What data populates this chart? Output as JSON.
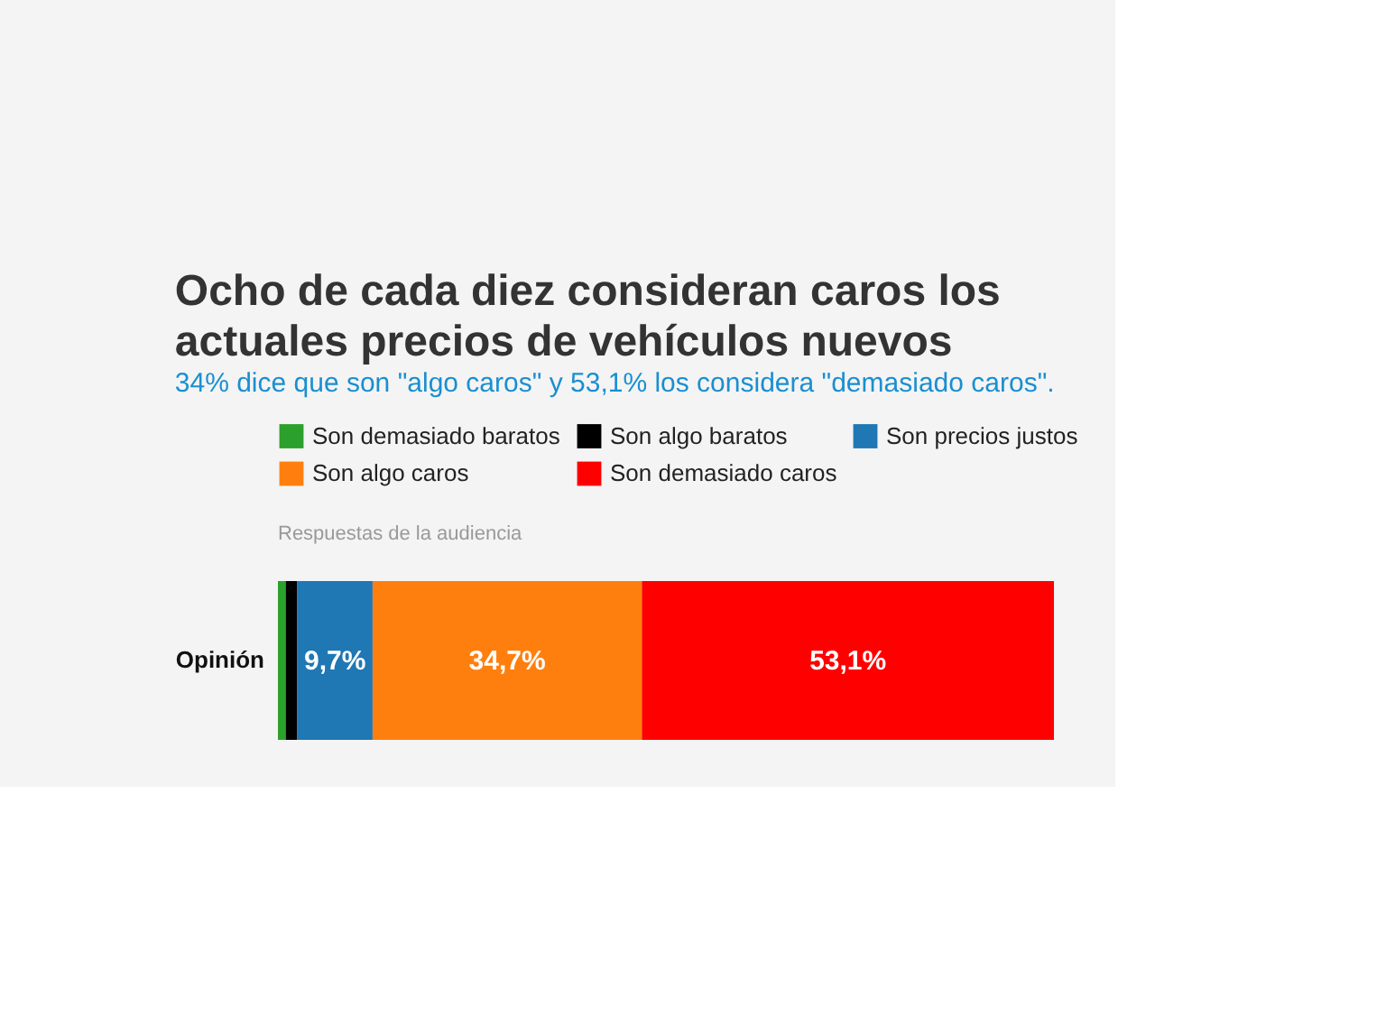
{
  "chart_data": {
    "type": "bar",
    "orientation": "horizontal",
    "stacked": true,
    "title": [
      "Ocho de cada diez consideran caros los",
      "actuales precios de vehículos nuevos"
    ],
    "subtitle": "34% dice que son \"algo caros\" y 53,1% los considera \"demasiado caros\".",
    "annotations": [
      "Respuestas de la audiencia"
    ],
    "categories": [
      "Opinión"
    ],
    "legend": "top",
    "series": [
      {
        "name": "Son demasiado baratos",
        "color": "#2ca02c",
        "values": [
          1.0
        ],
        "value_labels": [
          null
        ]
      },
      {
        "name": "Son algo baratos",
        "color": "#000000",
        "values": [
          1.5
        ],
        "value_labels": [
          null
        ]
      },
      {
        "name": "Son precios justos",
        "color": "#1f77b4",
        "values": [
          9.7
        ],
        "value_labels": [
          "9,7%"
        ]
      },
      {
        "name": "Son algo caros",
        "color": "#ff7f0e",
        "values": [
          34.7
        ],
        "value_labels": [
          "34,7%"
        ]
      },
      {
        "name": "Son demasiado caros",
        "color": "#ff0000",
        "values": [
          53.1
        ],
        "value_labels": [
          "53,1%"
        ]
      }
    ]
  }
}
